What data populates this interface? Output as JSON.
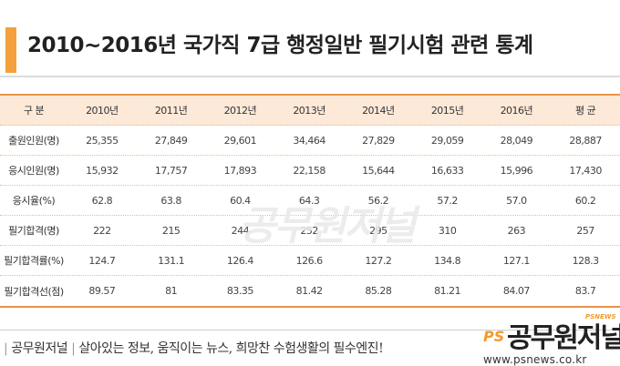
{
  "title": "2010~2016년 국가직 7급 행정일반 필기시험 관련 통계",
  "table": {
    "headers": [
      "구  분",
      "2010년",
      "2011년",
      "2012년",
      "2013년",
      "2014년",
      "2015년",
      "2016년",
      "평  균"
    ],
    "rows": [
      {
        "label": "출원인원(명)",
        "values": [
          "25,355",
          "27,849",
          "29,601",
          "34,464",
          "27,829",
          "29,059",
          "28,049",
          "28,887"
        ]
      },
      {
        "label": "응시인원(명)",
        "values": [
          "15,932",
          "17,757",
          "17,893",
          "22,158",
          "15,644",
          "16,633",
          "15,996",
          "17,430"
        ]
      },
      {
        "label": "응시율(%)",
        "values": [
          "62.8",
          "63.8",
          "60.4",
          "64.3",
          "56.2",
          "57.2",
          "57.0",
          "60.2"
        ]
      },
      {
        "label": "필기합격(명)",
        "values": [
          "222",
          "215",
          "244",
          "252",
          "295",
          "310",
          "263",
          "257"
        ]
      },
      {
        "label": "필기합격률(%)",
        "values": [
          "124.7",
          "131.1",
          "126.4",
          "126.6",
          "127.2",
          "134.8",
          "127.1",
          "128.3"
        ]
      },
      {
        "label": "필기합격선(점)",
        "values": [
          "89.57",
          "81",
          "83.35",
          "81.42",
          "85.28",
          "81.21",
          "84.07",
          "83.7"
        ]
      }
    ]
  },
  "watermark": "공무원저널",
  "footer": {
    "brand_left": "공무원저널",
    "slogan": "살아있는 정보, 움직이는 뉴스, 희망찬 수험생활의 필수엔진!",
    "logo_ps": "PS",
    "logo_name": "공무원저널",
    "logo_tag": "PSNEWS",
    "url": "www.psnews.co.kr"
  },
  "colors": {
    "accent": "#f4a03c",
    "header_bg": "#fde9d8",
    "rule": "#e8924a"
  }
}
